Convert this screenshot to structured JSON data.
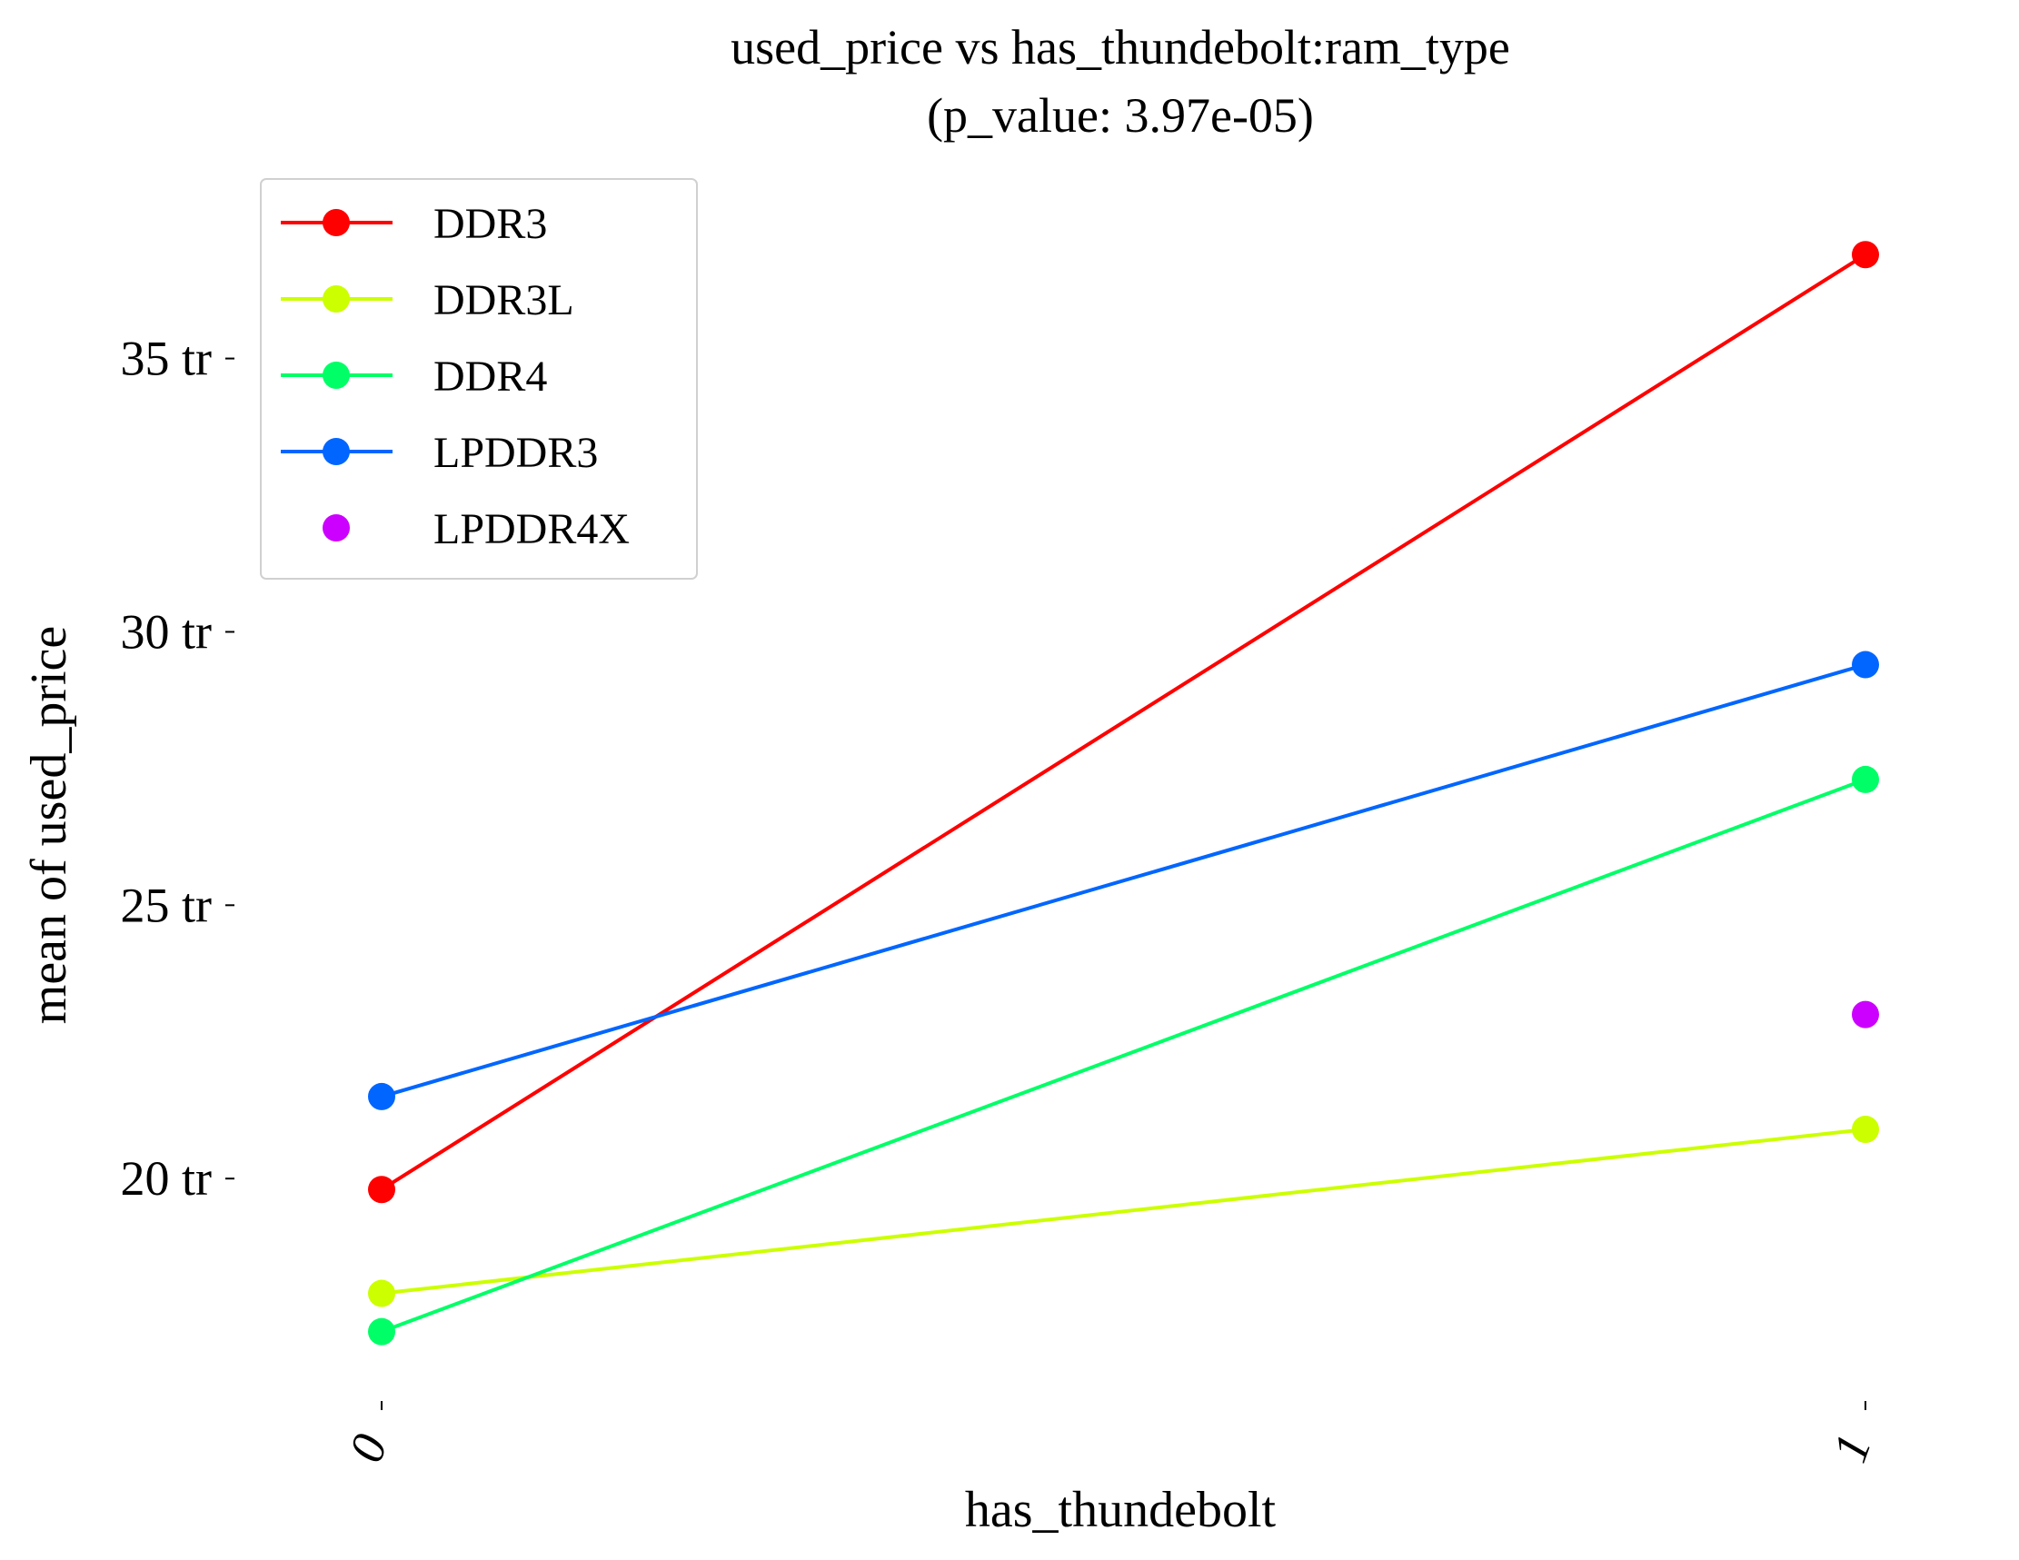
{
  "chart_data": {
    "type": "line",
    "title": "used_price vs has_thundebolt:ram_type",
    "subtitle": "(p_value: 3.97e-05)",
    "xlabel": "has_thundebolt",
    "ylabel": "mean of used_price",
    "categories": [
      "0",
      "1"
    ],
    "y_ticks": [
      {
        "value": 20,
        "label": "20 tr"
      },
      {
        "value": 25,
        "label": "25 tr"
      },
      {
        "value": 30,
        "label": "30 tr"
      },
      {
        "value": 35,
        "label": "35 tr"
      }
    ],
    "ylim": [
      15.3,
      38.4
    ],
    "grid": false,
    "legend_position": "top-left",
    "series": [
      {
        "name": "DDR3",
        "color": "#ff0000",
        "values": [
          19.8,
          36.9
        ]
      },
      {
        "name": "DDR3L",
        "color": "#ccff00",
        "values": [
          17.9,
          20.9
        ]
      },
      {
        "name": "DDR4",
        "color": "#00ff66",
        "values": [
          17.2,
          27.3
        ]
      },
      {
        "name": "LPDDR3",
        "color": "#0066ff",
        "values": [
          21.5,
          29.4
        ]
      },
      {
        "name": "LPDDR4X",
        "color": "#cc00ff",
        "values": [
          null,
          23.0
        ]
      }
    ]
  }
}
